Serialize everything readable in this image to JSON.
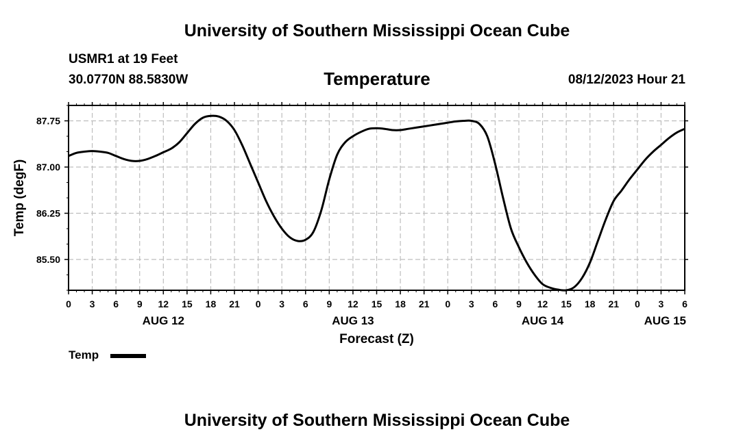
{
  "page": {
    "title_top": "University of Southern Mississippi Ocean Cube",
    "title_bottom": "University of Southern Mississippi Ocean Cube",
    "station": "USMR1 at 19 Feet",
    "location": "30.0770N  88.5830W",
    "variable": "Temperature",
    "valid_time": "08/12/2023 Hour 21"
  },
  "chart_data": {
    "type": "line",
    "title": "Temperature",
    "xlabel": "Forecast (Z)",
    "ylabel": "Temp (degF)",
    "xlim": [
      0,
      78
    ],
    "ylim": [
      85.0,
      88.0
    ],
    "grid": true,
    "x_tick_labels": [
      "0",
      "3",
      "6",
      "9",
      "12",
      "15",
      "18",
      "21",
      "0",
      "3",
      "6",
      "9",
      "12",
      "15",
      "18",
      "21",
      "0",
      "3",
      "6",
      "9",
      "12",
      "15",
      "18",
      "21",
      "0",
      "3",
      "6"
    ],
    "y_ticks": [
      85.5,
      86.25,
      87.0,
      87.75
    ],
    "y_tick_labels": [
      "85.50",
      "86.25",
      "87.00",
      "87.75"
    ],
    "day_labels": [
      {
        "hour": 12,
        "text": "AUG 12"
      },
      {
        "hour": 36,
        "text": "AUG 13"
      },
      {
        "hour": 60,
        "text": "AUG 14"
      },
      {
        "hour": 78,
        "text": "AUG 15"
      }
    ],
    "legend": {
      "label": "Temp",
      "position": "bottom-left"
    },
    "series": [
      {
        "name": "Temp",
        "x": [
          0,
          1,
          2,
          3,
          4,
          5,
          6,
          7,
          8,
          9,
          10,
          11,
          12,
          13,
          14,
          15,
          16,
          17,
          18,
          19,
          20,
          21,
          22,
          23,
          24,
          25,
          26,
          27,
          28,
          29,
          30,
          31,
          32,
          33,
          34,
          35,
          36,
          37,
          38,
          39,
          40,
          41,
          42,
          43,
          44,
          45,
          46,
          47,
          48,
          49,
          50,
          51,
          52,
          53,
          54,
          55,
          56,
          57,
          58,
          59,
          60,
          61,
          62,
          63,
          64,
          65,
          66,
          67,
          68,
          69,
          70,
          71,
          72,
          73,
          74,
          75,
          76,
          77,
          78
        ],
        "values": [
          87.18,
          87.23,
          87.25,
          87.26,
          87.25,
          87.23,
          87.18,
          87.13,
          87.1,
          87.1,
          87.13,
          87.18,
          87.24,
          87.3,
          87.4,
          87.55,
          87.7,
          87.8,
          87.83,
          87.82,
          87.75,
          87.6,
          87.35,
          87.05,
          86.75,
          86.45,
          86.2,
          86.0,
          85.86,
          85.8,
          85.82,
          85.95,
          86.3,
          86.8,
          87.2,
          87.4,
          87.5,
          87.57,
          87.62,
          87.63,
          87.62,
          87.6,
          87.6,
          87.62,
          87.64,
          87.66,
          87.68,
          87.7,
          87.72,
          87.74,
          87.75,
          87.75,
          87.7,
          87.5,
          87.05,
          86.5,
          86.0,
          85.7,
          85.45,
          85.25,
          85.1,
          85.04,
          85.01,
          85.0,
          85.05,
          85.2,
          85.45,
          85.8,
          86.15,
          86.45,
          86.62,
          86.8,
          86.96,
          87.12,
          87.25,
          87.36,
          87.47,
          87.56,
          87.62
        ]
      }
    ]
  }
}
